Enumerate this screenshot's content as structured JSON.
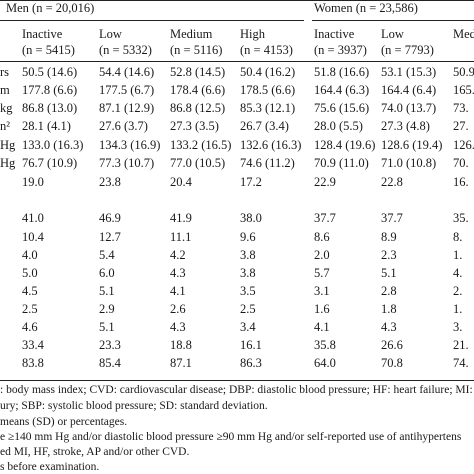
{
  "groups": {
    "men": "Men (n = 20,016)",
    "women": "Women (n = 23,586)"
  },
  "columns": [
    {
      "name": "Inactive",
      "n": "(n = 5415)"
    },
    {
      "name": "Low",
      "n": "(n = 5332)"
    },
    {
      "name": "Medium",
      "n": "(n = 5116)"
    },
    {
      "name": "High",
      "n": "(n = 4153)"
    },
    {
      "name": "Inactive",
      "n": "(n = 3937)"
    },
    {
      "name": "Low",
      "n": "(n = 7793)"
    },
    {
      "name": "Med",
      "n": ""
    }
  ],
  "rows": [
    {
      "label": "rs",
      "cells": [
        "50.5 (14.6)",
        "54.4 (14.6)",
        "52.8 (14.5)",
        "50.4 (16.2)",
        "51.8 (16.6)",
        "53.1 (15.3)",
        "50.9"
      ]
    },
    {
      "label": "m",
      "cells": [
        "177.8 (6.6)",
        "177.5 (6.7)",
        "178.4 (6.6)",
        "178.5 (6.6)",
        "164.4 (6.3)",
        "164.4 (6.4)",
        "165."
      ]
    },
    {
      "label": "kg",
      "cells": [
        "86.8 (13.0)",
        "87.1 (12.9)",
        "86.8 (12.5)",
        "85.3 (12.1)",
        "75.6 (15.6)",
        "74.0 (13.7)",
        "73."
      ]
    },
    {
      "label": "n²",
      "cells": [
        "28.1 (4.1)",
        "27.6 (3.7)",
        "27.3 (3.5)",
        "26.7 (3.4)",
        "28.0 (5.5)",
        "27.3 (4.8)",
        "27."
      ]
    },
    {
      "label": "Hg",
      "cells": [
        "133.0 (16.3)",
        "134.3 (16.9)",
        "133.2 (16.5)",
        "132.6 (16.3)",
        "128.4 (19.6)",
        "128.6 (19.4)",
        "126."
      ]
    },
    {
      "label": "Hg",
      "cells": [
        "76.7 (10.9)",
        "77.3 (10.7)",
        "77.0 (10.5)",
        "74.6 (11.2)",
        "70.9 (11.0)",
        "71.0 (10.8)",
        "70."
      ]
    },
    {
      "label": "",
      "cells": [
        "19.0",
        "23.8",
        "20.4",
        "17.2",
        "22.9",
        "22.8",
        "16."
      ]
    },
    {
      "label": "",
      "cells": [
        "",
        "",
        "",
        "",
        "",
        "",
        ""
      ]
    },
    {
      "label": "",
      "cells": [
        "41.0",
        "46.9",
        "41.9",
        "38.0",
        "37.7",
        "37.7",
        "35."
      ]
    },
    {
      "label": "",
      "cells": [
        "10.4",
        "12.7",
        "11.1",
        "9.6",
        "8.6",
        "8.9",
        "8."
      ]
    },
    {
      "label": "",
      "cells": [
        "4.0",
        "5.4",
        "4.2",
        "3.8",
        "2.0",
        "2.3",
        "1."
      ]
    },
    {
      "label": "",
      "cells": [
        "5.0",
        "6.0",
        "4.3",
        "3.8",
        "5.7",
        "5.1",
        "4."
      ]
    },
    {
      "label": "",
      "cells": [
        "4.5",
        "5.1",
        "4.1",
        "3.5",
        "3.1",
        "2.8",
        "2."
      ]
    },
    {
      "label": "",
      "cells": [
        "2.5",
        "2.9",
        "2.6",
        "2.5",
        "1.6",
        "1.8",
        "1."
      ]
    },
    {
      "label": "",
      "cells": [
        "4.6",
        "5.1",
        "4.3",
        "3.4",
        "4.1",
        "4.3",
        "3."
      ]
    },
    {
      "label": "",
      "cells": [
        "33.4",
        "23.3",
        "18.8",
        "16.1",
        "35.8",
        "26.6",
        "21."
      ]
    },
    {
      "label": "",
      "cells": [
        "83.8",
        "85.4",
        "87.1",
        "86.3",
        "64.0",
        "70.8",
        "74."
      ]
    }
  ],
  "footnotes": [
    ": body mass index; CVD: cardiovascular disease; DBP: diastolic blood pressure; HF: heart failure; MI: my",
    "ury; SBP: systolic blood pressure; SD: standard deviation.",
    "means (SD) or percentages.",
    "e ≥140 mm Hg and/or diastolic blood pressure ≥90 mm Hg and/or self-reported use of antihypertens",
    "ed MI, HF, stroke, AP and/or other CVD.",
    "s before examination."
  ]
}
